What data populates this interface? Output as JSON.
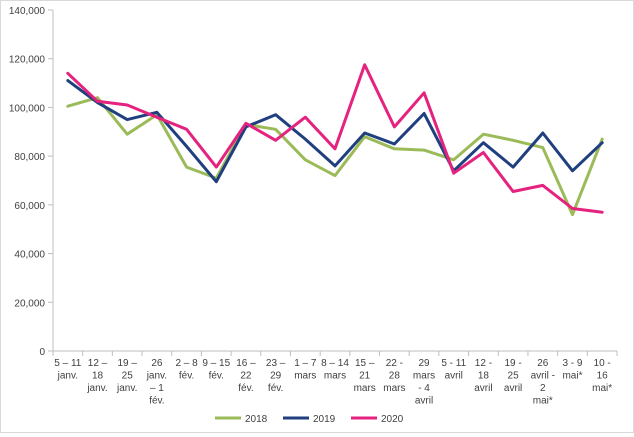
{
  "chart_data": {
    "type": "line",
    "title": "",
    "xlabel": "",
    "ylabel": "",
    "ylim": [
      0,
      140000
    ],
    "yticks": [
      0,
      20000,
      40000,
      60000,
      80000,
      100000,
      120000,
      140000
    ],
    "ytick_labels": [
      "0",
      "20,000",
      "40,000",
      "60,000",
      "80,000",
      "100,000",
      "120,000",
      "140,000"
    ],
    "grid": false,
    "legend_position": "bottom",
    "categories": [
      [
        "5 – 11",
        "janv."
      ],
      [
        "12 –",
        "18",
        "janv."
      ],
      [
        "19 –",
        "25",
        "janv."
      ],
      [
        "26",
        "janv.",
        "– 1",
        "fév."
      ],
      [
        "2 – 8",
        "fév."
      ],
      [
        "9 – 15",
        "fév."
      ],
      [
        "16 –",
        "22",
        "fév."
      ],
      [
        "23 –",
        "29",
        "fév."
      ],
      [
        "1 – 7",
        "mars"
      ],
      [
        "8 – 14",
        "mars"
      ],
      [
        "15 –",
        "21",
        "mars"
      ],
      [
        "22 -",
        "28",
        "mars"
      ],
      [
        "29",
        "mars",
        "- 4",
        "avril"
      ],
      [
        "5 - 11",
        "avril"
      ],
      [
        "12 -",
        "18",
        "avril"
      ],
      [
        "19 -",
        "25",
        "avril"
      ],
      [
        "26",
        "avril -",
        "2",
        "mai*"
      ],
      [
        "3 - 9",
        "mai*"
      ],
      [
        "10 -",
        "16",
        "mai*"
      ]
    ],
    "series": [
      {
        "name": "2018",
        "color": "#9bbb59",
        "values": [
          100500,
          104000,
          89000,
          97000,
          75500,
          71000,
          93000,
          91000,
          78500,
          72000,
          88000,
          83000,
          82500,
          78500,
          89000,
          86500,
          83500,
          56000,
          87000
        ]
      },
      {
        "name": "2019",
        "color": "#1f3f7f",
        "values": [
          111000,
          102000,
          95000,
          98000,
          84000,
          69500,
          92000,
          97000,
          87000,
          76000,
          89500,
          85000,
          97500,
          74000,
          85500,
          75500,
          89500,
          74000,
          85500
        ]
      },
      {
        "name": "2020",
        "color": "#e5237f",
        "values": [
          114000,
          102500,
          101000,
          96000,
          91000,
          75500,
          93500,
          86500,
          96000,
          83000,
          117500,
          92000,
          106000,
          73000,
          81500,
          65500,
          68000,
          58500,
          57000
        ]
      }
    ]
  }
}
